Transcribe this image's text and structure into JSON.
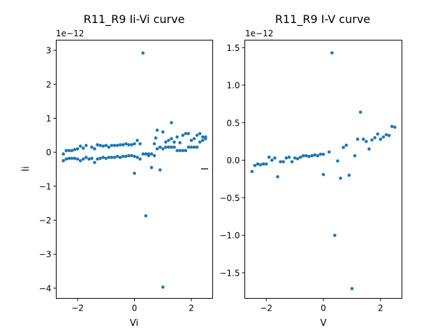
{
  "chart_data": [
    {
      "type": "scatter",
      "title": "R11_R9 Ii-Vi curve",
      "xlabel": "Vi",
      "ylabel": "Ii",
      "y_offset_label": "1e−12",
      "xlim": [
        -2.75,
        2.75
      ],
      "ylim": [
        -4.3,
        3.3
      ],
      "xticks": [
        {
          "v": -2,
          "label": "−2"
        },
        {
          "v": 0,
          "label": "0"
        },
        {
          "v": 2,
          "label": "2"
        }
      ],
      "yticks": [
        {
          "v": 3,
          "label": "3"
        },
        {
          "v": 2,
          "label": "2"
        },
        {
          "v": 1,
          "label": "1"
        },
        {
          "v": 0,
          "label": "0"
        },
        {
          "v": -1,
          "label": "−1"
        },
        {
          "v": -2,
          "label": "−2"
        },
        {
          "v": -3,
          "label": "−3"
        },
        {
          "v": -4,
          "label": "−4"
        }
      ],
      "color": "#1f77b4",
      "grid": false,
      "points": [
        [
          -2.5,
          -0.25
        ],
        [
          -2.4,
          -0.2
        ],
        [
          -2.3,
          -0.18
        ],
        [
          -2.2,
          -0.18
        ],
        [
          -2.1,
          -0.18
        ],
        [
          -2.0,
          -0.2
        ],
        [
          -1.9,
          -0.25
        ],
        [
          -1.8,
          -0.2
        ],
        [
          -1.7,
          -0.15
        ],
        [
          -1.6,
          -0.2
        ],
        [
          -1.5,
          -0.18
        ],
        [
          -1.4,
          -0.3
        ],
        [
          -1.3,
          -0.2
        ],
        [
          -1.2,
          -0.18
        ],
        [
          -1.1,
          -0.15
        ],
        [
          -1.0,
          -0.18
        ],
        [
          -0.9,
          -0.15
        ],
        [
          -0.8,
          -0.15
        ],
        [
          -0.7,
          -0.15
        ],
        [
          -0.6,
          -0.12
        ],
        [
          -0.5,
          -0.15
        ],
        [
          -0.4,
          -0.12
        ],
        [
          -0.3,
          -0.12
        ],
        [
          -0.2,
          -0.1
        ],
        [
          -0.1,
          -0.1
        ],
        [
          0.0,
          -0.12
        ],
        [
          0.1,
          -0.15
        ],
        [
          0.2,
          -0.2
        ],
        [
          0.3,
          -0.05
        ],
        [
          0.4,
          -0.05
        ],
        [
          0.5,
          -0.1
        ],
        [
          0.6,
          -0.05
        ],
        [
          0.7,
          -0.1
        ],
        [
          0.8,
          0.1
        ],
        [
          0.9,
          0.15
        ],
        [
          1.0,
          0.1
        ],
        [
          1.1,
          0.15
        ],
        [
          1.2,
          0.15
        ],
        [
          1.3,
          0.15
        ],
        [
          1.4,
          0.15
        ],
        [
          1.5,
          0.05
        ],
        [
          1.6,
          0.05
        ],
        [
          1.7,
          0.05
        ],
        [
          1.8,
          0.05
        ],
        [
          1.9,
          0.15
        ],
        [
          2.0,
          0.15
        ],
        [
          2.1,
          0.15
        ],
        [
          2.2,
          0.15
        ],
        [
          2.3,
          0.3
        ],
        [
          2.4,
          0.35
        ],
        [
          2.5,
          0.4
        ],
        [
          -2.5,
          -0.05
        ],
        [
          -2.4,
          0.05
        ],
        [
          -2.3,
          0.05
        ],
        [
          -2.2,
          0.05
        ],
        [
          -2.1,
          0.08
        ],
        [
          -2.0,
          0.1
        ],
        [
          -1.9,
          0.18
        ],
        [
          -1.8,
          0.12
        ],
        [
          -1.7,
          0.2
        ],
        [
          -1.5,
          0.15
        ],
        [
          -1.4,
          0.1
        ],
        [
          -1.3,
          0.22
        ],
        [
          -1.2,
          0.2
        ],
        [
          -1.1,
          0.18
        ],
        [
          -1.0,
          0.2
        ],
        [
          -0.9,
          0.15
        ],
        [
          -0.8,
          0.2
        ],
        [
          -0.7,
          0.2
        ],
        [
          -0.6,
          0.2
        ],
        [
          -0.5,
          0.22
        ],
        [
          -0.4,
          0.22
        ],
        [
          -0.3,
          0.25
        ],
        [
          -0.2,
          0.22
        ],
        [
          -0.1,
          0.22
        ],
        [
          0.0,
          0.25
        ],
        [
          0.1,
          0.35
        ],
        [
          0.2,
          0.25
        ],
        [
          0.0,
          -0.62
        ],
        [
          0.4,
          -0.05
        ],
        [
          0.5,
          -0.05
        ],
        [
          0.6,
          -0.45
        ],
        [
          0.7,
          0.25
        ],
        [
          0.8,
          0.65
        ],
        [
          0.9,
          -0.52
        ],
        [
          1.0,
          0.6
        ],
        [
          1.1,
          0.3
        ],
        [
          1.2,
          0.35
        ],
        [
          1.3,
          0.4
        ],
        [
          1.4,
          0.3
        ],
        [
          1.5,
          0.45
        ],
        [
          1.6,
          0.28
        ],
        [
          1.7,
          0.5
        ],
        [
          1.8,
          0.55
        ],
        [
          1.9,
          0.55
        ],
        [
          2.0,
          0.35
        ],
        [
          2.1,
          0.4
        ],
        [
          2.2,
          0.5
        ],
        [
          2.3,
          0.55
        ],
        [
          2.4,
          0.45
        ],
        [
          2.5,
          0.45
        ],
        [
          0.3,
          2.92
        ],
        [
          0.4,
          -1.87
        ],
        [
          1.0,
          -3.97
        ],
        [
          1.3,
          0.87
        ],
        [
          0.75,
          0.42
        ]
      ]
    },
    {
      "type": "scatter",
      "title": "R11_R9 I-V curve",
      "xlabel": "V",
      "ylabel": "I",
      "y_offset_label": "1e−12",
      "xlim": [
        -2.75,
        2.75
      ],
      "ylim": [
        -1.84,
        1.6
      ],
      "xticks": [
        {
          "v": -2,
          "label": "−2"
        },
        {
          "v": 0,
          "label": "0"
        },
        {
          "v": 2,
          "label": "2"
        }
      ],
      "yticks": [
        {
          "v": 1.5,
          "label": "1.5"
        },
        {
          "v": 1.0,
          "label": "1.0"
        },
        {
          "v": 0.5,
          "label": "0.5"
        },
        {
          "v": 0.0,
          "label": "0.0"
        },
        {
          "v": -0.5,
          "label": "−0.5"
        },
        {
          "v": -1.0,
          "label": "−1.0"
        },
        {
          "v": -1.5,
          "label": "−1.5"
        }
      ],
      "color": "#1f77b4",
      "grid": false,
      "points": [
        [
          -2.5,
          -0.15
        ],
        [
          -2.4,
          -0.07
        ],
        [
          -2.3,
          -0.05
        ],
        [
          -2.2,
          -0.06
        ],
        [
          -2.1,
          -0.05
        ],
        [
          -2.0,
          -0.05
        ],
        [
          -1.9,
          0.04
        ],
        [
          -1.8,
          0.0
        ],
        [
          -1.7,
          0.03
        ],
        [
          -1.6,
          -0.22
        ],
        [
          -1.5,
          -0.02
        ],
        [
          -1.4,
          -0.02
        ],
        [
          -1.3,
          0.03
        ],
        [
          -1.2,
          0.04
        ],
        [
          -1.1,
          -0.02
        ],
        [
          -1.0,
          0.03
        ],
        [
          -0.9,
          0.02
        ],
        [
          -0.8,
          0.04
        ],
        [
          -0.7,
          0.06
        ],
        [
          -0.6,
          0.06
        ],
        [
          -0.5,
          0.05
        ],
        [
          -0.4,
          0.06
        ],
        [
          -0.3,
          0.07
        ],
        [
          -0.2,
          0.06
        ],
        [
          -0.1,
          0.08
        ],
        [
          0.0,
          0.08
        ],
        [
          0.0,
          -0.19
        ],
        [
          0.2,
          0.11
        ],
        [
          0.3,
          1.43
        ],
        [
          0.4,
          -1.0
        ],
        [
          0.5,
          -0.01
        ],
        [
          0.6,
          -0.24
        ],
        [
          0.7,
          0.17
        ],
        [
          0.8,
          0.2
        ],
        [
          0.9,
          -0.2
        ],
        [
          1.0,
          -1.71
        ],
        [
          1.1,
          0.06
        ],
        [
          1.2,
          0.28
        ],
        [
          1.3,
          0.64
        ],
        [
          1.4,
          0.28
        ],
        [
          1.5,
          0.25
        ],
        [
          1.6,
          0.15
        ],
        [
          1.7,
          0.27
        ],
        [
          1.8,
          0.3
        ],
        [
          1.9,
          0.35
        ],
        [
          2.0,
          0.28
        ],
        [
          2.1,
          0.31
        ],
        [
          2.2,
          0.34
        ],
        [
          2.3,
          0.33
        ],
        [
          2.4,
          0.45
        ],
        [
          2.5,
          0.44
        ]
      ]
    }
  ]
}
